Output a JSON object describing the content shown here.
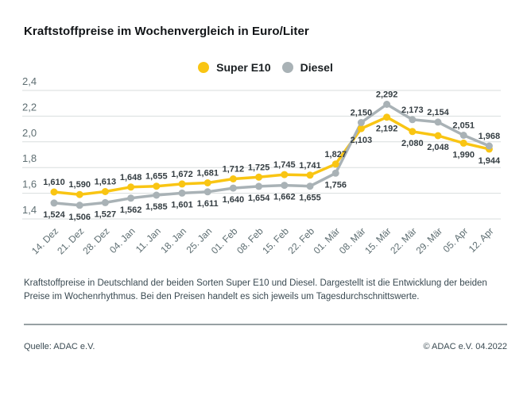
{
  "page": {
    "title": "Kraftstoffpreise im Wochenvergleich in Euro/Liter",
    "description": "Kraftstoffpreise in Deutschland der beiden Sorten Super E10 und Diesel. Dargestellt ist die Entwicklung der beiden Preise im Wochenrhythmus. Bei den Preisen handelt es sich jeweils um Tagesdurchschnittswerte.",
    "source": "Quelle: ADAC e.V.",
    "copyright": "© ADAC e.V. 04.2022"
  },
  "colors": {
    "super_e10": "#F9C513",
    "diesel": "#A9B2B6",
    "grid": "#D9DEDE",
    "axis_text": "#5E6E72",
    "data_label_text": "#343D42",
    "divider": "#97A0A3"
  },
  "chart_data": {
    "type": "line",
    "title": "Kraftstoffpreise im Wochenvergleich in Euro/Liter",
    "xlabel": "",
    "ylabel": "Euro/Liter",
    "ylim": [
      1.4,
      2.4
    ],
    "ytick_step": 0.2,
    "grid": true,
    "legend_position": "top-center",
    "decimal_separator": ",",
    "categories": [
      "14. Dez",
      "21. Dez",
      "28. Dez",
      "04. Jan",
      "11. Jan",
      "18. Jan",
      "25. Jan",
      "01. Feb",
      "08. Feb",
      "15. Feb",
      "22. Feb",
      "01. Mär",
      "08. Mär",
      "15. Mär",
      "22. Mär",
      "29. Mär",
      "05. Apr",
      "12. Apr"
    ],
    "series": [
      {
        "name": "Super E10",
        "color": "#F9C513",
        "values": [
          1.61,
          1.59,
          1.613,
          1.648,
          1.655,
          1.672,
          1.681,
          1.712,
          1.725,
          1.745,
          1.741,
          1.827,
          2.103,
          2.192,
          2.08,
          2.048,
          1.99,
          1.944
        ]
      },
      {
        "name": "Diesel",
        "color": "#A9B2B6",
        "values": [
          1.524,
          1.506,
          1.527,
          1.562,
          1.585,
          1.601,
          1.611,
          1.64,
          1.654,
          1.662,
          1.655,
          1.756,
          2.15,
          2.292,
          2.173,
          2.154,
          2.051,
          1.968
        ]
      }
    ]
  }
}
